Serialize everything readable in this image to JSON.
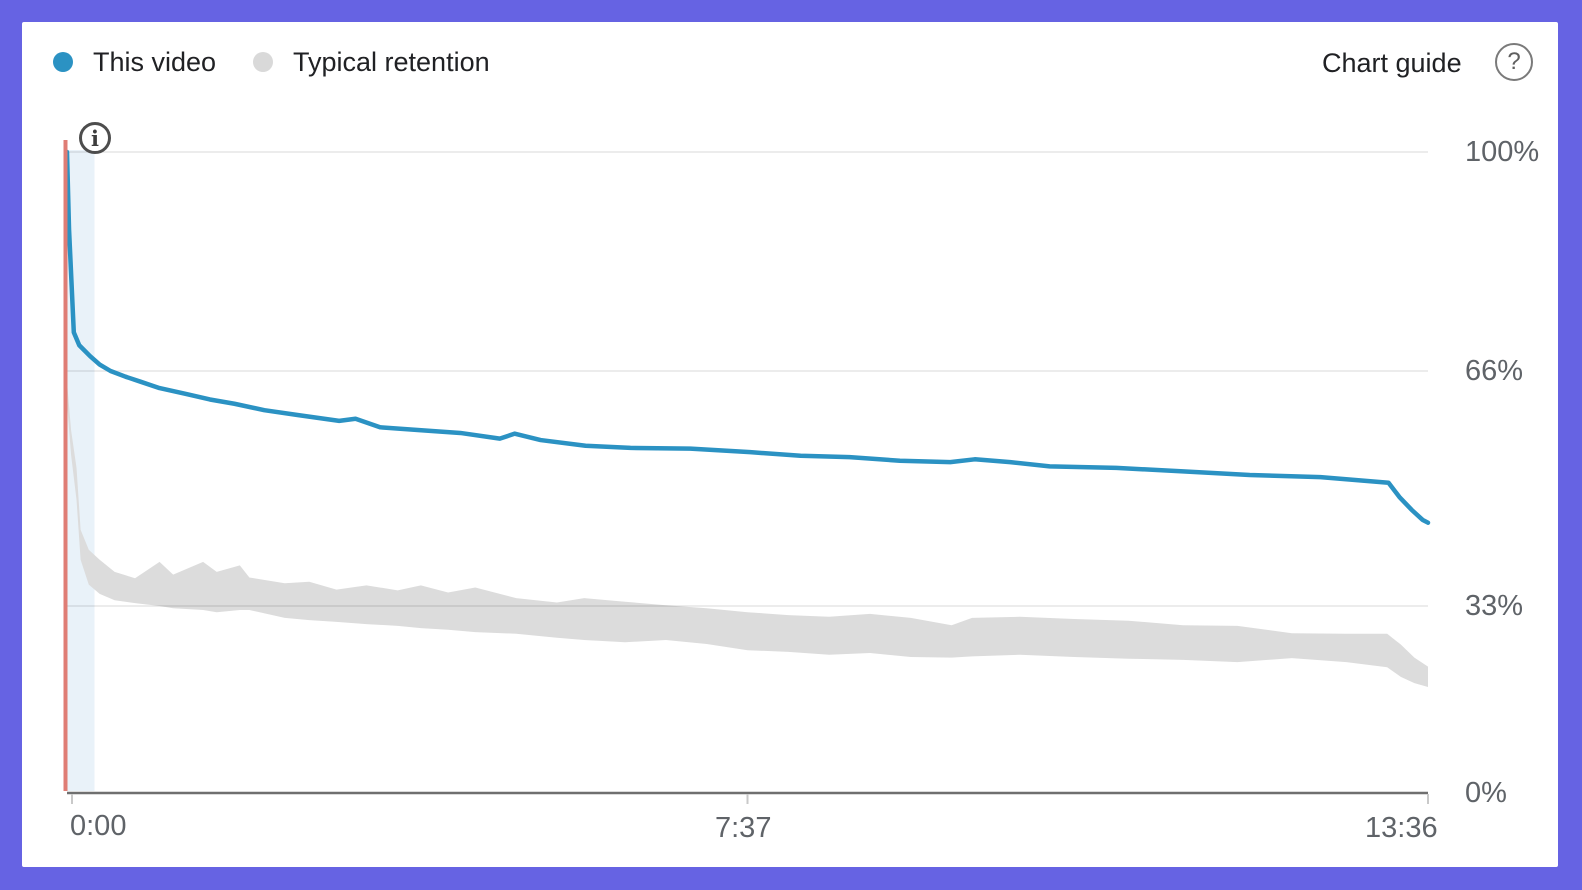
{
  "frame": {
    "background": "#6663e3",
    "card_background": "#ffffff"
  },
  "legend": {
    "items": [
      {
        "label": "This video",
        "color": "#2b92c3"
      },
      {
        "label": "Typical retention",
        "color": "#d9d9d9"
      }
    ]
  },
  "chart_guide": {
    "label": "Chart guide",
    "help_icon_glyph": "?"
  },
  "info_icon_glyph": "i",
  "chart_data": {
    "type": "line",
    "x_axis": {
      "tick_labels": [
        "0:00",
        "7:37",
        "13:36"
      ],
      "tick_positions_percent": [
        0,
        50,
        100
      ]
    },
    "y_axis": {
      "tick_labels": [
        "100%",
        "66%",
        "33%",
        "0%"
      ],
      "tick_values": [
        100,
        66,
        33,
        0
      ],
      "unit": "% audience retention",
      "range": [
        0,
        100
      ]
    },
    "grid": true,
    "legend_position": "top-left",
    "markers": {
      "start_marker_color": "#df7d75",
      "start_highlight_color": "#e9f2f9"
    },
    "series": [
      {
        "name": "This video",
        "type": "line",
        "color": "#2b92c3",
        "t_percent": [
          0,
          0.15,
          0.5,
          0.9,
          1.7,
          2.4,
          3.2,
          4.3,
          5.4,
          6.8,
          8.7,
          10.5,
          12.3,
          14.5,
          17,
          20,
          21.2,
          23,
          25.9,
          28.9,
          31.8,
          32.9,
          34.8,
          38.1,
          41.4,
          45.8,
          50.2,
          53.9,
          57.5,
          61.2,
          64.9,
          66.7,
          69.3,
          72.2,
          77.1,
          82,
          86.9,
          92.1,
          97.1,
          97.9,
          98.8,
          99.6,
          100
        ],
        "values_percent": [
          100,
          88,
          72,
          70,
          68.3,
          67,
          66,
          65.2,
          64.5,
          63.6,
          62.8,
          62,
          61.4,
          60.5,
          59.8,
          59,
          59.3,
          58.1,
          57.7,
          57.3,
          56.5,
          57.2,
          56.3,
          55.5,
          55.2,
          55.1,
          54.6,
          54.1,
          53.9,
          53.4,
          53.2,
          53.6,
          53.2,
          52.6,
          52.4,
          51.9,
          51.4,
          51.1,
          50.3,
          48.3,
          46.5,
          45.1,
          44.7
        ]
      },
      {
        "name": "Typical retention",
        "type": "band",
        "color": "#dcdcdc",
        "t_percent": [
          0,
          0.3,
          0.7,
          1,
          1.6,
          2.4,
          3.5,
          5,
          6.8,
          7.8,
          10,
          11,
          12.7,
          13.4,
          16,
          17.8,
          19.8,
          22,
          24.3,
          26,
          28,
          30,
          33,
          36,
          38,
          41,
          44,
          47,
          50,
          53,
          56,
          59,
          62,
          65,
          66.5,
          70,
          74,
          78,
          82,
          86,
          90,
          94,
          97,
          98,
          99,
          100
        ],
        "top_percent": [
          64.5,
          57.7,
          52.4,
          43.7,
          40.9,
          39.5,
          37.8,
          36.9,
          39.2,
          37.4,
          39.2,
          37.8,
          38.7,
          37,
          36.2,
          36.4,
          35.3,
          35.9,
          35.2,
          35.9,
          34.9,
          35.6,
          34.1,
          33.5,
          34.1,
          33.6,
          33.1,
          32.6,
          31.9,
          31.4,
          31.1,
          31.6,
          30.9,
          29.6,
          30.9,
          31.1,
          30.7,
          30.4,
          29.6,
          29.5,
          28.2,
          28.1,
          28.1,
          26.2,
          23.9,
          22.3
        ],
        "bottom_percent": [
          61.5,
          54.2,
          47.9,
          39.5,
          36,
          34.7,
          33.8,
          33.4,
          33,
          32.6,
          32.3,
          31.9,
          32.3,
          32.3,
          30.9,
          30.5,
          30.2,
          29.8,
          29.5,
          29.1,
          28.8,
          28.4,
          28.1,
          27.4,
          27,
          26.6,
          27,
          26.3,
          25.2,
          24.9,
          24.4,
          24.7,
          24,
          23.9,
          24.1,
          24.4,
          24,
          23.7,
          23.5,
          23.1,
          23.8,
          23.1,
          22.2,
          20.5,
          19.4,
          18.7
        ]
      }
    ]
  }
}
